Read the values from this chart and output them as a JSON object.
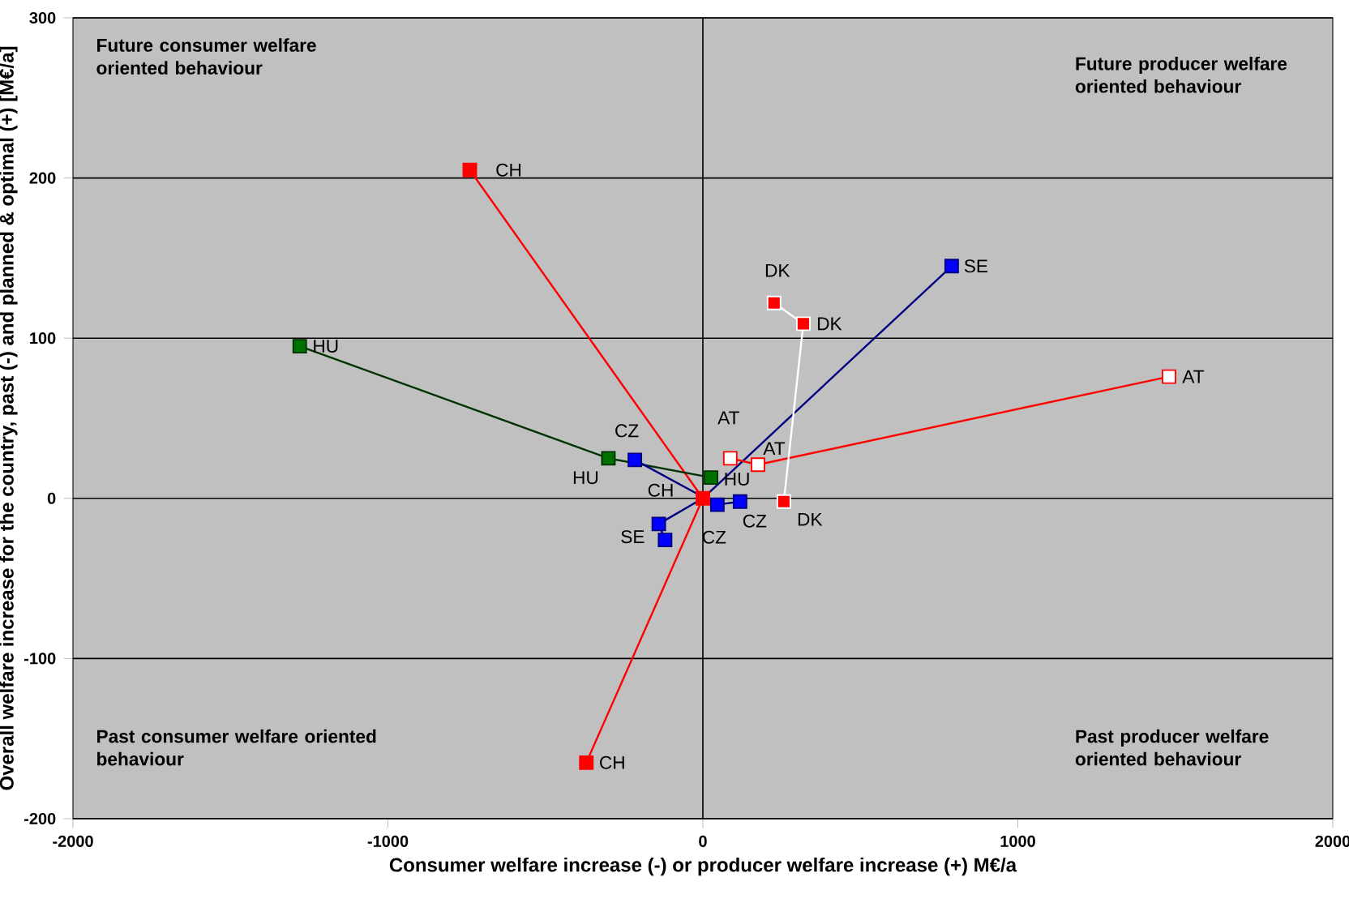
{
  "chart_data": {
    "type": "line",
    "xlabel": "Consumer welfare increase (-) or producer welfare increase (+) M€/a",
    "ylabel": "Overall welfare increase for the country, past (-) and planned & optimal (+) [M€/a]",
    "xlim": [
      -2000,
      2000
    ],
    "xticks": [
      -2000,
      -1000,
      0,
      1000,
      2000
    ],
    "ylim": [
      -200,
      300
    ],
    "yticks": [
      -200,
      -100,
      0,
      100,
      200,
      300
    ],
    "grid": "y",
    "marker": "square",
    "series": [
      {
        "color": "#ff0000",
        "x": [
          -740,
          0,
          -370
        ],
        "values": [
          205,
          0,
          -165
        ],
        "colors": [
          "#ff0000",
          "#ff0000",
          "#ff0000"
        ]
      },
      {
        "color": "#003300",
        "x": [
          -1280,
          -300,
          26
        ],
        "values": [
          95,
          25,
          13
        ],
        "colors": [
          "#007000",
          "#007000",
          "#007000"
        ]
      },
      {
        "color": "#000080",
        "x": [
          -216,
          46,
          118
        ],
        "values": [
          24,
          -4,
          -2
        ],
        "colors": [
          "#0000ff",
          "#0000ff",
          "#0000ff"
        ]
      },
      {
        "color": "#000080",
        "x": [
          -120,
          -140,
          0,
          790
        ],
        "values": [
          -26,
          -16,
          0,
          145
        ],
        "colors": [
          "#0000ff",
          "#0000ff",
          null,
          "#0000ff"
        ]
      },
      {
        "color": "#ff0000",
        "x": [
          87,
          175,
          1480
        ],
        "values": [
          25,
          21,
          76
        ],
        "colors": [
          "#ffffff",
          "#ffffff",
          "#ffffff"
        ]
      },
      {
        "color": "#ffffff",
        "x": [
          226,
          319,
          257
        ],
        "values": [
          122,
          109,
          -2
        ],
        "colors": [
          "#ff0000",
          "#ff0000",
          "#ff0000"
        ]
      }
    ],
    "annotations": [
      "Future consumer welfare oriented behaviour",
      "Future producer welfare oriented behaviour",
      "Past consumer welfare oriented behaviour",
      "Past producer welfare oriented behaviour",
      {
        "text": "CH",
        "x": -740,
        "y": 205
      },
      {
        "text": "CH",
        "x": 0,
        "y": 0
      },
      {
        "text": "CH",
        "x": -370,
        "y": -165
      },
      {
        "text": "HU",
        "x": -1280,
        "y": 95
      },
      {
        "text": "HU",
        "x": -300,
        "y": 25
      },
      {
        "text": "HU",
        "x": 26,
        "y": 13
      },
      {
        "text": "CZ",
        "x": -216,
        "y": 24
      },
      {
        "text": "CZ",
        "x": 46,
        "y": -4
      },
      {
        "text": "CZ",
        "x": 118,
        "y": -2
      },
      {
        "text": "SE",
        "x": -120,
        "y": -26
      },
      {
        "text": "SE",
        "x": 790,
        "y": 145
      },
      {
        "text": "AT",
        "x": 87,
        "y": 25
      },
      {
        "text": "AT",
        "x": 175,
        "y": 21
      },
      {
        "text": "AT",
        "x": 1480,
        "y": 76
      },
      {
        "text": "DK",
        "x": 226,
        "y": 122
      },
      {
        "text": "DK",
        "x": 319,
        "y": 109
      },
      {
        "text": "DK",
        "x": 257,
        "y": -2
      }
    ],
    "ref_lines": [
      {
        "axis": "x",
        "value": 0,
        "color": "#000000"
      }
    ]
  }
}
